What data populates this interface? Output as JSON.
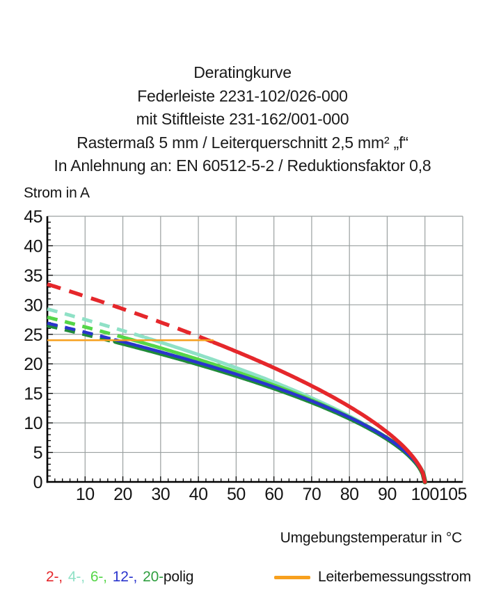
{
  "title_lines": [
    "Deratingkurve",
    "Federleiste 2231-102/026-000",
    "mit Stiftleiste 231-162/001-000",
    "Rastermaß 5 mm / Leiterquerschnitt 2,5 mm² „f“",
    "In Anlehnung an: EN 60512-5-2 / Reduktionsfaktor 0,8"
  ],
  "chart_data": {
    "type": "line",
    "title": "Deratingkurve",
    "ylabel": "Strom in A",
    "xlabel": "Umgebungstemperatur in °C",
    "xlim": [
      0,
      110
    ],
    "ylim": [
      0,
      45
    ],
    "x_tick_labels": [
      10,
      20,
      30,
      40,
      50,
      60,
      70,
      80,
      90,
      100,
      105
    ],
    "y_tick_labels": [
      0,
      5,
      10,
      15,
      20,
      25,
      30,
      35,
      40,
      45
    ],
    "x_minor_tick_step": 2,
    "y_minor_tick_step": 1,
    "grid": true,
    "grid_color": "#9aa0a0",
    "axis_color": "#000000",
    "legend_position": "bottom",
    "series": [
      {
        "name": "2-polig",
        "color": "#e5272b",
        "stroke_width": 5.5,
        "line_style": "dashed above rated current, solid below",
        "dashed_until_c": 44,
        "start_a": 33.5,
        "decay_exp": 0.6,
        "dash": "20 13",
        "points": [
          [
            0,
            33.5
          ],
          [
            10,
            31.4
          ],
          [
            20,
            29.3
          ],
          [
            30,
            27.0
          ],
          [
            40,
            24.7
          ],
          [
            50,
            22.1
          ],
          [
            60,
            19.3
          ],
          [
            70,
            16.3
          ],
          [
            80,
            12.8
          ],
          [
            90,
            8.4
          ],
          [
            100,
            0
          ]
        ]
      },
      {
        "name": "4-polig",
        "color": "#8fe1c6",
        "stroke_width": 5,
        "line_style": "dashed above rated current, solid below",
        "dashed_until_c": 26,
        "start_a": 29.3,
        "decay_exp": 0.6,
        "dash": "15 11",
        "points": [
          [
            0,
            29.3
          ],
          [
            10,
            27.5
          ],
          [
            20,
            25.6
          ],
          [
            30,
            23.7
          ],
          [
            40,
            21.6
          ],
          [
            50,
            19.3
          ],
          [
            60,
            16.9
          ],
          [
            70,
            14.2
          ],
          [
            80,
            11.2
          ],
          [
            90,
            7.4
          ],
          [
            100,
            0
          ]
        ]
      },
      {
        "name": "6-polig",
        "color": "#55d648",
        "stroke_width": 5,
        "line_style": "dashed above rated current, solid below",
        "dashed_until_c": 20,
        "start_a": 27.9,
        "decay_exp": 0.58,
        "dash": "15 11",
        "points": [
          [
            0,
            27.9
          ],
          [
            10,
            26.2
          ],
          [
            20,
            24.5
          ],
          [
            30,
            22.7
          ],
          [
            40,
            20.7
          ],
          [
            50,
            18.7
          ],
          [
            60,
            16.4
          ],
          [
            70,
            13.9
          ],
          [
            80,
            11.0
          ],
          [
            90,
            7.3
          ],
          [
            100,
            0
          ]
        ]
      },
      {
        "name": "12-polig",
        "color": "#2a34cd",
        "stroke_width": 4.5,
        "line_style": "dashed above rated current, solid below",
        "dashed_until_c": 18,
        "start_a": 26.9,
        "decay_exp": 0.56,
        "dash": "15 11",
        "points": [
          [
            0,
            26.9
          ],
          [
            10,
            25.4
          ],
          [
            20,
            23.7
          ],
          [
            30,
            22.0
          ],
          [
            40,
            20.2
          ],
          [
            50,
            18.2
          ],
          [
            60,
            16.1
          ],
          [
            70,
            13.7
          ],
          [
            80,
            10.9
          ],
          [
            90,
            7.4
          ],
          [
            100,
            0
          ]
        ]
      },
      {
        "name": "20-polig",
        "color": "#1f8a39",
        "stroke_width": 7,
        "line_style": "dashed above rated current, solid below (drawn just beneath 12-polig curve)",
        "dashed_until_c": 18,
        "start_a": 26.6,
        "decay_exp": 0.56,
        "dash": "15 11",
        "points": [
          [
            0,
            26.6
          ],
          [
            10,
            25.1
          ],
          [
            20,
            23.5
          ],
          [
            30,
            21.8
          ],
          [
            40,
            20.0
          ],
          [
            50,
            18.0
          ],
          [
            60,
            15.9
          ],
          [
            70,
            13.6
          ],
          [
            80,
            10.8
          ],
          [
            90,
            7.3
          ],
          [
            100,
            0
          ]
        ]
      }
    ],
    "rated_current_line": {
      "name": "Leiterbemessungsstrom",
      "color": "#f7a01e",
      "value_a": 24,
      "from_c": 0,
      "to_c": 44,
      "stroke_width": 2.5
    }
  },
  "legend": {
    "poles": [
      {
        "label": "2-,",
        "color": "#e5272b"
      },
      {
        "label": "4-,",
        "color": "#8fe1c6"
      },
      {
        "label": "6-,",
        "color": "#55d648"
      },
      {
        "label": "12-,",
        "color": "#2a34cd"
      },
      {
        "label": "20-",
        "color": "#2f9e3f"
      }
    ],
    "poles_suffix": "polig",
    "rated_label": "Leiterbemessungsstrom",
    "rated_color": "#f7a01e"
  }
}
